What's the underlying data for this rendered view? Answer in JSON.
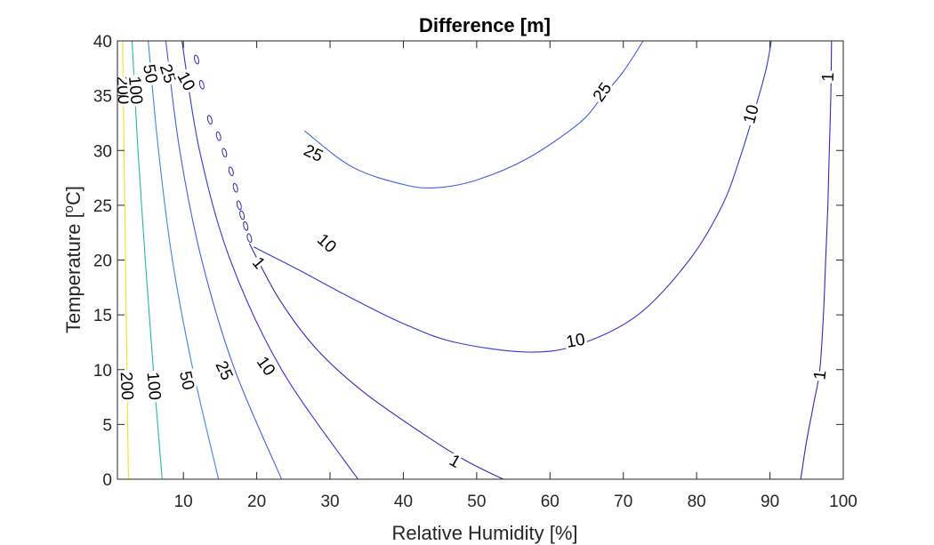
{
  "chart_data": {
    "type": "contour",
    "title": "Difference [m]",
    "xlabel": "Relative Humidity [%]",
    "ylabel_main": "Temperature [",
    "ylabel_sup": "o",
    "ylabel_end": "C]",
    "xlim": [
      1,
      100
    ],
    "ylim": [
      0,
      40
    ],
    "xticks": [
      10,
      20,
      30,
      40,
      50,
      60,
      70,
      80,
      90,
      100
    ],
    "yticks": [
      0,
      5,
      10,
      15,
      20,
      25,
      30,
      35,
      40
    ],
    "box": true,
    "grid": false,
    "colors": {
      "200": "#f2e51a",
      "100": "#2ab6a4",
      "50": "#3d86e6",
      "25": "#3f5ee8",
      "10": "#3537d2",
      "1": "#2f2ab6"
    },
    "contours": [
      {
        "level": 200,
        "lines": [
          [
            [
              1.7,
              40
            ],
            [
              1.9,
              30
            ],
            [
              2.1,
              20
            ],
            [
              2.3,
              10
            ],
            [
              2.5,
              0
            ]
          ]
        ]
      },
      {
        "level": 100,
        "lines": [
          [
            [
              3.0,
              40
            ],
            [
              3.8,
              30
            ],
            [
              4.8,
              20
            ],
            [
              5.9,
              10
            ],
            [
              7.1,
              0
            ]
          ]
        ]
      },
      {
        "level": 50,
        "lines": [
          [
            [
              5.2,
              40
            ],
            [
              6.6,
              30
            ],
            [
              8.5,
              20
            ],
            [
              11.3,
              10
            ],
            [
              14.8,
              0
            ]
          ]
        ]
      },
      {
        "level": 25,
        "lines": [
          [
            [
              7.6,
              40
            ],
            [
              9.5,
              30
            ],
            [
              12.5,
              20
            ],
            [
              17.0,
              10
            ],
            [
              23.4,
              0
            ]
          ]
        ]
      },
      {
        "level": 10,
        "lines": [
          [
            [
              9.8,
              40
            ],
            [
              12.2,
              30
            ],
            [
              16.4,
              20
            ],
            [
              23.4,
              10
            ],
            [
              33.8,
              0
            ]
          ]
        ]
      },
      {
        "level": 1,
        "lines": [
          [
            [
              19.0,
              21.5
            ],
            [
              23.0,
              16.5
            ],
            [
              28.0,
              12.0
            ],
            [
              34.5,
              8.0
            ],
            [
              43.0,
              4.0
            ],
            [
              48.5,
              1.7
            ],
            [
              53.6,
              0
            ]
          ],
          [
            [
              94.2,
              0
            ],
            [
              95.0,
              3.5
            ],
            [
              96.0,
              7.0
            ],
            [
              96.8,
              10.0
            ],
            [
              97.3,
              15.0
            ],
            [
              97.6,
              20.0
            ],
            [
              97.9,
              25.0
            ],
            [
              98.1,
              30.0
            ],
            [
              98.3,
              35.0
            ],
            [
              98.4,
              40.0
            ]
          ]
        ]
      },
      {
        "level": 10,
        "lines": [
          [
            [
              19.6,
              21.2
            ],
            [
              26.0,
              19.0
            ],
            [
              33.0,
              16.5
            ],
            [
              40.0,
              14.2
            ],
            [
              47.0,
              12.5
            ],
            [
              57.0,
              11.6
            ],
            [
              64.0,
              12.3
            ],
            [
              72.0,
              15.0
            ],
            [
              79.0,
              20.0
            ],
            [
              83.5,
              25.0
            ],
            [
              86.0,
              29.5
            ],
            [
              88.5,
              35.0
            ],
            [
              89.5,
              37.5
            ],
            [
              90.2,
              40.0
            ]
          ]
        ]
      },
      {
        "level": 25,
        "lines": [
          [
            [
              26.5,
              31.8
            ],
            [
              33.0,
              28.5
            ],
            [
              40.0,
              26.9
            ],
            [
              44.5,
              26.6
            ],
            [
              50.0,
              27.3
            ],
            [
              57.0,
              29.3
            ],
            [
              64.0,
              32.5
            ],
            [
              67.0,
              34.8
            ],
            [
              70.0,
              37.2
            ],
            [
              72.7,
              40.0
            ]
          ]
        ]
      }
    ],
    "loops": [
      {
        "level": 1,
        "x": 11.8,
        "y": 38.3
      },
      {
        "level": 1,
        "x": 12.5,
        "y": 36.0
      },
      {
        "level": 1,
        "x": 13.6,
        "y": 32.8
      },
      {
        "level": 1,
        "x": 14.8,
        "y": 31.3
      },
      {
        "level": 1,
        "x": 15.6,
        "y": 29.8
      },
      {
        "level": 1,
        "x": 16.5,
        "y": 28.1
      },
      {
        "level": 1,
        "x": 17.1,
        "y": 26.6
      },
      {
        "level": 1,
        "x": 17.6,
        "y": 25.0
      },
      {
        "level": 1,
        "x": 18.0,
        "y": 24.1
      },
      {
        "level": 1,
        "x": 18.5,
        "y": 23.1
      },
      {
        "level": 1,
        "x": 19.0,
        "y": 22.0
      }
    ],
    "contour_labels": [
      {
        "text": "200",
        "x": 1.7,
        "y": 35.5,
        "angle": 87
      },
      {
        "text": "100",
        "x": 3.4,
        "y": 35.5,
        "angle": 85
      },
      {
        "text": "50",
        "x": 5.4,
        "y": 37.0,
        "angle": 80
      },
      {
        "text": "25",
        "x": 7.8,
        "y": 37.0,
        "angle": 72
      },
      {
        "text": "10",
        "x": 10.3,
        "y": 36.3,
        "angle": 62
      },
      {
        "text": "25",
        "x": 27.7,
        "y": 29.7,
        "angle": 25
      },
      {
        "text": "25",
        "x": 67.2,
        "y": 35.3,
        "angle": -55
      },
      {
        "text": "10",
        "x": 29.5,
        "y": 21.5,
        "angle": 42
      },
      {
        "text": "1",
        "x": 20.2,
        "y": 19.7,
        "angle": 50
      },
      {
        "text": "10",
        "x": 63.5,
        "y": 12.6,
        "angle": -10
      },
      {
        "text": "10",
        "x": 87.5,
        "y": 33.3,
        "angle": -75
      },
      {
        "text": "1",
        "x": 98.0,
        "y": 36.7,
        "angle": -88
      },
      {
        "text": "200",
        "x": 2.2,
        "y": 8.5,
        "angle": 87
      },
      {
        "text": "100",
        "x": 5.9,
        "y": 8.5,
        "angle": 85
      },
      {
        "text": "50",
        "x": 10.4,
        "y": 9.0,
        "angle": 78
      },
      {
        "text": "25",
        "x": 15.5,
        "y": 9.9,
        "angle": 65
      },
      {
        "text": "10",
        "x": 21.2,
        "y": 10.3,
        "angle": 55
      },
      {
        "text": "1",
        "x": 47.0,
        "y": 1.6,
        "angle": 30
      },
      {
        "text": "1",
        "x": 96.9,
        "y": 9.5,
        "angle": -83
      }
    ]
  }
}
